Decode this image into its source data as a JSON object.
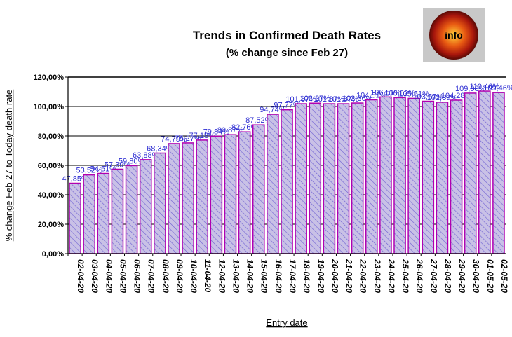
{
  "logo": {
    "text": "info"
  },
  "chart_data": {
    "type": "bar",
    "title": "Trends in Confirmed Death Rates",
    "subtitle": "(% change since Feb 27)",
    "xlabel": "Entry date",
    "ylabel": "% change Feb 27 to Today death rate",
    "ylim": [
      0,
      120
    ],
    "yticks": [
      0,
      20,
      40,
      60,
      80,
      100,
      120
    ],
    "ytick_labels": [
      "0,00%",
      "20,00%",
      "40,00%",
      "60,00%",
      "80,00%",
      "100,00%",
      "120,00%"
    ],
    "grid": true,
    "legend": "none",
    "colors": {
      "bar_fill": "#c9c1e6",
      "hatch": "#6d5fd3",
      "bar_edge": "#b000b0",
      "label": "#2d2dd2"
    },
    "categories": [
      "02-04-20",
      "03-04-20",
      "04-04-20",
      "05-04-20",
      "06-04-20",
      "07-04-20",
      "08-04-20",
      "09-04-20",
      "10-04-20",
      "11-04-20",
      "12-04-20",
      "13-04-20",
      "14-04-20",
      "15-04-20",
      "16-04-20",
      "17-04-20",
      "18-04-20",
      "19-04-20",
      "20-04-20",
      "21-04-20",
      "22-04-20",
      "23-04-20",
      "24-04-20",
      "25-04-20",
      "26-04-20",
      "27-04-20",
      "28-04-20",
      "29-04-20",
      "30-04-20",
      "01-05-20",
      "02-05-20"
    ],
    "values": [
      47.85,
      53.52,
      54.51,
      57.39,
      59.8,
      63.88,
      68.34,
      74.79,
      75.27,
      77.18,
      79.84,
      80.87,
      82.76,
      87.52,
      94.74,
      97.77,
      101.87,
      102.27,
      101.87,
      101.87,
      102.36,
      104.51,
      106.51,
      106.02,
      105.51,
      103.57,
      102.89,
      104.28,
      109.08,
      110.46,
      109.46
    ],
    "data_labels": [
      "47,85%",
      "53,52%",
      "54,51%",
      "57,39%",
      "59,80%",
      "63,88%",
      "68,34%",
      "74,79%",
      "75,27%",
      "77,18%",
      "79,84%",
      "80,87%",
      "82,76%",
      "87,52%",
      "94,74%",
      "97,77%",
      "101,87%",
      "102,27%",
      "101,87%",
      "101,87%",
      "102,36%",
      "104,51%",
      "106,51%",
      "106,02%",
      "105,51%",
      "103,57%",
      "102,89%",
      "104,28%",
      "109,08%",
      "110,46%",
      "109,46%"
    ]
  }
}
